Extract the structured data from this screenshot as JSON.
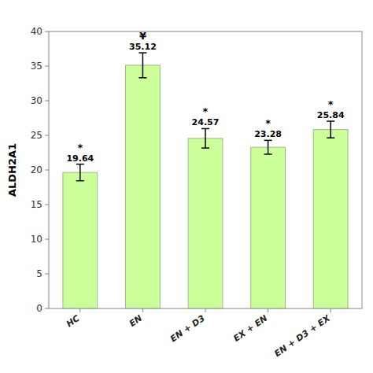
{
  "chart_data": {
    "type": "bar",
    "ylabel": "ALDH2A1",
    "categories": [
      "HC",
      "EN",
      "EN + D3",
      "EX + EN",
      "EN + D3 + EX"
    ],
    "values": [
      19.64,
      35.12,
      24.57,
      23.28,
      25.84
    ],
    "errors": [
      1.2,
      1.8,
      1.4,
      1.0,
      1.2
    ],
    "annotations": [
      "*",
      "¥",
      "*",
      "*",
      "*"
    ],
    "color": "#ccff99",
    "ylim": [
      0,
      40
    ],
    "yticks": [
      0,
      5,
      10,
      15,
      20,
      25,
      30,
      35,
      40
    ],
    "data_labels": true,
    "grid": false
  }
}
